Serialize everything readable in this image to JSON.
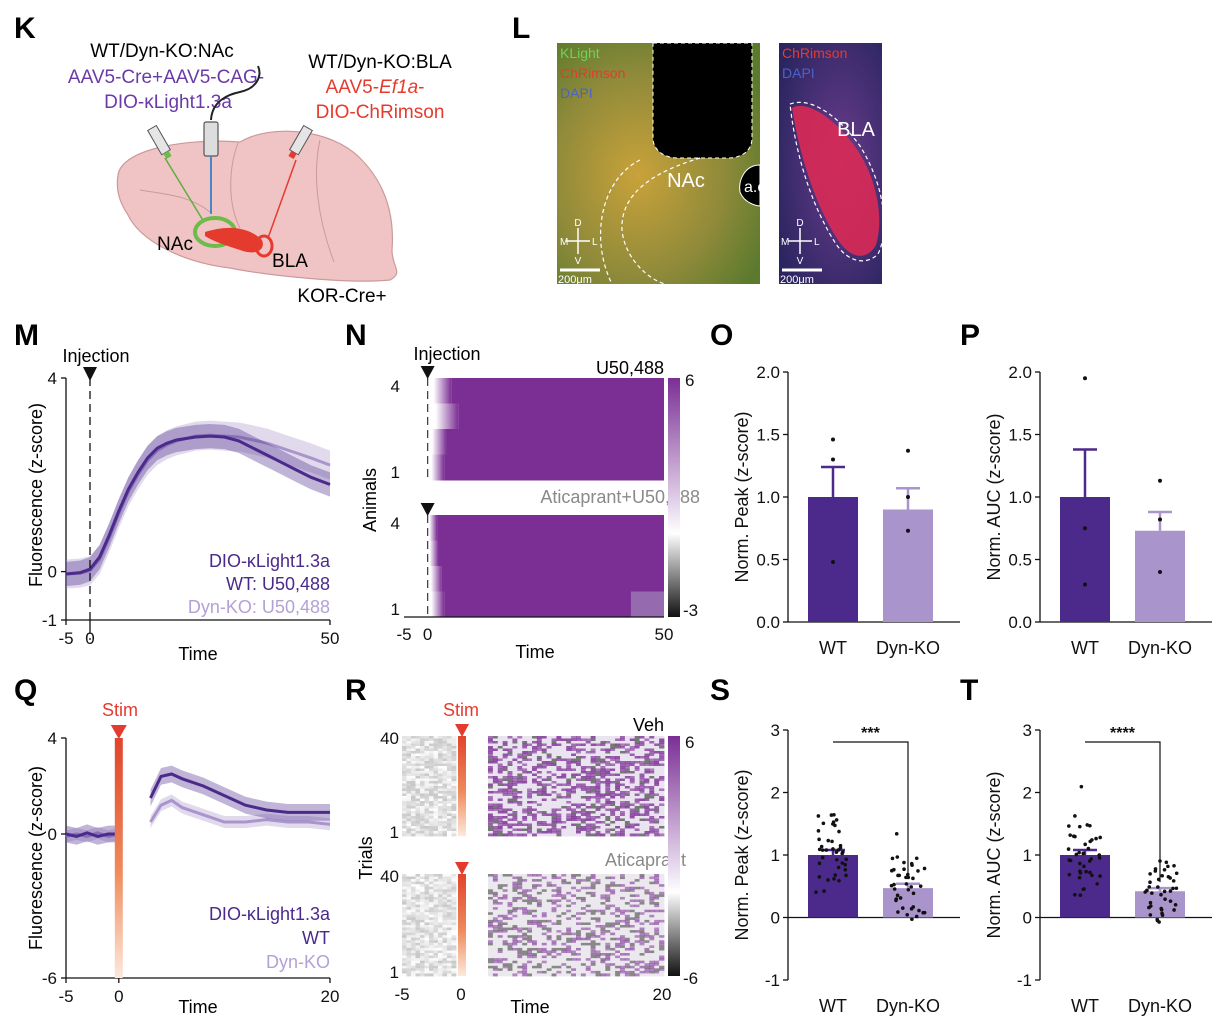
{
  "panel_letters": [
    "K",
    "L",
    "M",
    "N",
    "O",
    "P",
    "Q",
    "R",
    "S",
    "T"
  ],
  "colors": {
    "wt": "#4b2a8c",
    "dyn": "#a995cc",
    "red": "#e53b2e",
    "heat_purple": "#7b2f94"
  },
  "K": {
    "left_title": "WT/Dyn-KO:NAc",
    "left_line1": "AAV5-Cre+AAV5-CAG-",
    "left_line2": "DIO-κLight1.3a",
    "right_title": "WT/Dyn-KO:BLA",
    "right_line1_prefix": "AAV5-",
    "right_line1_italic": "Ef1a",
    "right_line1_suffix": "-",
    "right_line2": "DIO-ChRimson",
    "nac_label": "NAc",
    "bla_label": "BLA",
    "mouse_label": "KOR-Cre+"
  },
  "L": {
    "left_legend": [
      "KLight",
      "ChRimson",
      "DAPI"
    ],
    "right_legend": [
      "ChRimson",
      "DAPI"
    ],
    "nac_label": "NAc",
    "ac_label": "a.c",
    "bla_label": "BLA",
    "scale_bar": "200μm",
    "compass": {
      "d": "D",
      "v": "V",
      "m": "M",
      "l": "L"
    }
  },
  "M": {
    "annotation": "Injection",
    "ylabel": "Fluorescence (z-score)",
    "xlabel": "Time",
    "yticks": [
      "4",
      "0",
      "-1"
    ],
    "xticks": [
      "-5",
      "0",
      "50"
    ],
    "legend": [
      "DIO-κLight1.3a",
      "WT: U50,488",
      "Dyn-KO: U50,488"
    ]
  },
  "N": {
    "annotation": "Injection",
    "ylabel": "Animals",
    "xlabel": "Time",
    "top_title": "U50,488",
    "bottom_title": "Aticaprant+U50,488",
    "row_ticks_top": [
      "4",
      "1"
    ],
    "row_ticks_bottom": [
      "4",
      "1"
    ],
    "xticks": [
      "-5",
      "0",
      "50"
    ],
    "colorbar_ticks": [
      "6",
      "-3"
    ]
  },
  "Q": {
    "annotation": "Stim",
    "ylabel": "Fluorescence (z-score)",
    "xlabel": "Time",
    "yticks": [
      "4",
      "0",
      "-6"
    ],
    "xticks": [
      "-5",
      "0",
      "20"
    ],
    "legend": [
      "DIO-κLight1.3a",
      "WT",
      "Dyn-KO"
    ]
  },
  "R": {
    "annotation": "Stim",
    "ylabel": "Trials",
    "xlabel": "Time",
    "top_title": "Veh",
    "bottom_title": "Aticaprant",
    "row_ticks_top": [
      "40",
      "1"
    ],
    "row_ticks_bottom": [
      "40",
      "1"
    ],
    "xticks": [
      "-5",
      "0",
      "20"
    ],
    "colorbar_ticks": [
      "6",
      "-6"
    ]
  },
  "chart_data": [
    {
      "panel": "M",
      "type": "line",
      "xlabel": "Time",
      "ylabel": "Fluorescence (z-score)",
      "xlim": [
        -5,
        50
      ],
      "ylim": [
        -1,
        4
      ],
      "x": [
        -5,
        -2,
        0,
        2,
        4,
        6,
        8,
        10,
        12,
        14,
        16,
        18,
        20,
        22,
        25,
        28,
        31,
        34,
        37,
        40,
        43,
        46,
        50
      ],
      "series": [
        {
          "name": "WT: U50,488",
          "values": [
            -0.05,
            -0.02,
            0.05,
            0.3,
            0.75,
            1.25,
            1.7,
            2.05,
            2.35,
            2.55,
            2.65,
            2.72,
            2.75,
            2.78,
            2.8,
            2.78,
            2.7,
            2.55,
            2.4,
            2.25,
            2.1,
            1.95,
            1.8
          ],
          "sem": 0.25
        },
        {
          "name": "Dyn-KO: U50,488",
          "values": [
            -0.05,
            -0.03,
            0.02,
            0.25,
            0.7,
            1.2,
            1.65,
            2.0,
            2.3,
            2.5,
            2.62,
            2.7,
            2.75,
            2.8,
            2.82,
            2.8,
            2.78,
            2.72,
            2.65,
            2.55,
            2.45,
            2.35,
            2.2
          ],
          "sem": 0.3
        }
      ]
    },
    {
      "panel": "N",
      "type": "heatmap",
      "xlabel": "Time",
      "ylabel": "Animals",
      "xlim": [
        -5,
        50
      ],
      "color_range": [
        -3,
        6
      ],
      "groups": [
        {
          "name": "U50,488",
          "rows": 4,
          "onset": [
            3.5,
            5,
            2.5,
            2
          ]
        },
        {
          "name": "Aticaprant+U50,488",
          "rows": 4,
          "onset": [
            0.5,
            0.8,
            1.5,
            2
          ]
        }
      ]
    },
    {
      "panel": "O",
      "type": "bar",
      "ylabel": "Norm. Peak (z-score)",
      "categories": [
        "WT",
        "Dyn-KO"
      ],
      "ylim": [
        0,
        2.0
      ],
      "yticks": [
        "0.0",
        "0.5",
        "1.0",
        "1.5",
        "2.0"
      ],
      "values": [
        1.0,
        0.9
      ],
      "sem": [
        0.24,
        0.17
      ],
      "points": [
        [
          1.46,
          1.3,
          0.48
        ],
        [
          1.37,
          1.0,
          0.73
        ]
      ]
    },
    {
      "panel": "P",
      "type": "bar",
      "ylabel": "Norm. AUC (z-score)",
      "categories": [
        "WT",
        "Dyn-KO"
      ],
      "ylim": [
        0,
        2.0
      ],
      "yticks": [
        "0.0",
        "0.5",
        "1.0",
        "1.5",
        "2.0"
      ],
      "values": [
        1.0,
        0.73
      ],
      "sem": [
        0.38,
        0.15
      ],
      "points": [
        [
          1.95,
          0.75,
          0.3
        ],
        [
          1.13,
          0.82,
          0.4
        ]
      ]
    },
    {
      "panel": "Q",
      "type": "line",
      "xlabel": "Time",
      "ylabel": "Fluorescence (z-score)",
      "xlim": [
        -5,
        20
      ],
      "ylim": [
        -6,
        4
      ],
      "x": [
        -5,
        -4,
        -3,
        -2,
        -1,
        0,
        3,
        4,
        5,
        6,
        8,
        10,
        12,
        14,
        16,
        18,
        20
      ],
      "series": [
        {
          "name": "WT",
          "values": [
            0.0,
            -0.1,
            0.05,
            -0.1,
            0.0,
            0.0,
            1.5,
            2.4,
            2.5,
            2.3,
            2.0,
            1.6,
            1.2,
            1.0,
            0.9,
            0.9,
            0.9
          ],
          "sem": 0.35
        },
        {
          "name": "Dyn-KO",
          "values": [
            -0.1,
            0.0,
            -0.1,
            0.05,
            -0.1,
            0.0,
            0.5,
            1.2,
            1.4,
            1.1,
            0.8,
            0.5,
            0.5,
            0.6,
            0.5,
            0.5,
            0.4
          ],
          "sem": 0.25
        }
      ]
    },
    {
      "panel": "R",
      "type": "heatmap",
      "xlabel": "Time",
      "ylabel": "Trials",
      "xlim": [
        -5,
        20
      ],
      "color_range": [
        -6,
        6
      ],
      "groups": [
        {
          "name": "Veh",
          "rows": 40
        },
        {
          "name": "Aticaprant",
          "rows": 40
        }
      ]
    },
    {
      "panel": "S",
      "type": "bar",
      "ylabel": "Norm. Peak (z-score)",
      "categories": [
        "WT",
        "Dyn-KO"
      ],
      "ylim": [
        -1,
        3
      ],
      "yticks": [
        "-1",
        "0",
        "1",
        "2",
        "3"
      ],
      "values": [
        1.0,
        0.47
      ],
      "sem": [
        0.08,
        0.07
      ],
      "significance": "***"
    },
    {
      "panel": "T",
      "type": "bar",
      "ylabel": "Norm. AUC (z-score)",
      "categories": [
        "WT",
        "Dyn-KO"
      ],
      "ylim": [
        -1,
        3
      ],
      "yticks": [
        "-1",
        "0",
        "1",
        "2",
        "3"
      ],
      "values": [
        1.0,
        0.42
      ],
      "sem": [
        0.08,
        0.05
      ],
      "significance": "****"
    }
  ]
}
